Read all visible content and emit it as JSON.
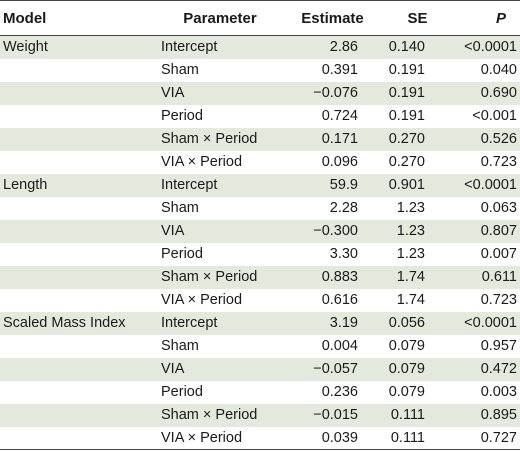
{
  "headers": {
    "model": "Model",
    "parameter": "Parameter",
    "estimate": "Estimate",
    "se": "SE",
    "p": "P"
  },
  "colors": {
    "row_shade": "#e3e9dd",
    "rule": "#444444"
  },
  "rows": [
    {
      "model": "Weight",
      "parameter": "Intercept",
      "estimate": "2.86",
      "se": "0.140",
      "p": "<0.0001"
    },
    {
      "model": "",
      "parameter": "Sham",
      "estimate": "0.391",
      "se": "0.191",
      "p": "0.040"
    },
    {
      "model": "",
      "parameter": "VIA",
      "estimate": "−0.076",
      "se": "0.191",
      "p": "0.690"
    },
    {
      "model": "",
      "parameter": "Period",
      "estimate": "0.724",
      "se": "0.191",
      "p": "<0.001"
    },
    {
      "model": "",
      "parameter": "Sham × Period",
      "estimate": "0.171",
      "se": "0.270",
      "p": "0.526"
    },
    {
      "model": "",
      "parameter": "VIA × Period",
      "estimate": "0.096",
      "se": "0.270",
      "p": "0.723"
    },
    {
      "model": "Length",
      "parameter": "Intercept",
      "estimate": "59.9",
      "se": "0.901",
      "p": "<0.0001"
    },
    {
      "model": "",
      "parameter": "Sham",
      "estimate": "2.28",
      "se": "1.23",
      "p": "0.063"
    },
    {
      "model": "",
      "parameter": "VIA",
      "estimate": "−0.300",
      "se": "1.23",
      "p": "0.807"
    },
    {
      "model": "",
      "parameter": "Period",
      "estimate": "3.30",
      "se": "1.23",
      "p": "0.007"
    },
    {
      "model": "",
      "parameter": "Sham × Period",
      "estimate": "0.883",
      "se": "1.74",
      "p": "0.611"
    },
    {
      "model": "",
      "parameter": "VIA × Period",
      "estimate": "0.616",
      "se": "1.74",
      "p": "0.723"
    },
    {
      "model": "Scaled Mass Index",
      "parameter": "Intercept",
      "estimate": "3.19",
      "se": "0.056",
      "p": "<0.0001"
    },
    {
      "model": "",
      "parameter": "Sham",
      "estimate": "0.004",
      "se": "0.079",
      "p": "0.957"
    },
    {
      "model": "",
      "parameter": "VIA",
      "estimate": "−0.057",
      "se": "0.079",
      "p": "0.472"
    },
    {
      "model": "",
      "parameter": "Period",
      "estimate": "0.236",
      "se": "0.079",
      "p": "0.003"
    },
    {
      "model": "",
      "parameter": "Sham × Period",
      "estimate": "−0.015",
      "se": "0.111",
      "p": "0.895"
    },
    {
      "model": "",
      "parameter": "VIA × Period",
      "estimate": "0.039",
      "se": "0.111",
      "p": "0.727"
    }
  ]
}
